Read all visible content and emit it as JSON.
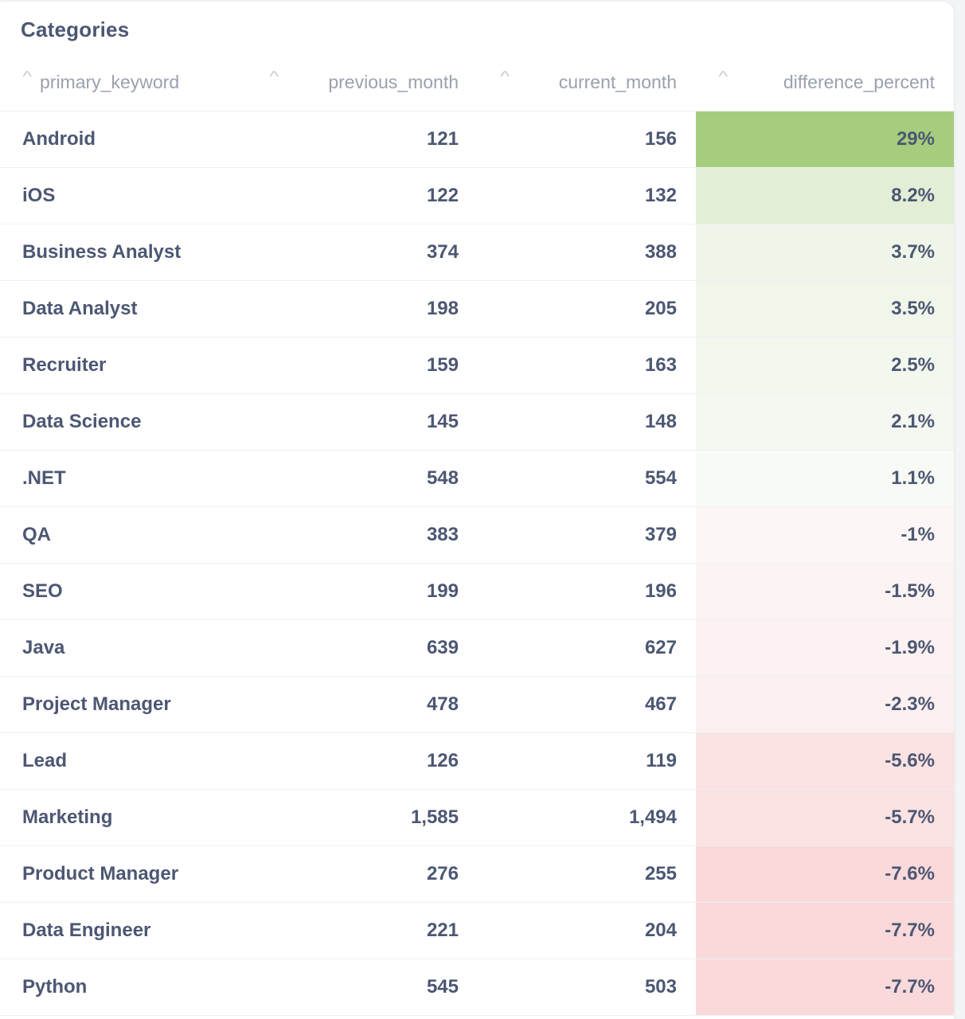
{
  "card": {
    "title": "Categories"
  },
  "table": {
    "columns": [
      "primary_keyword",
      "previous_month",
      "current_month",
      "difference_percent"
    ],
    "rows": [
      {
        "keyword": "Android",
        "previous": "121",
        "current": "156",
        "diff": "29%",
        "bg": "#a5cd7d"
      },
      {
        "keyword": "iOS",
        "previous": "122",
        "current": "132",
        "diff": "8.2%",
        "bg": "#e2efd6"
      },
      {
        "keyword": "Business Analyst",
        "previous": "374",
        "current": "388",
        "diff": "3.7%",
        "bg": "#eff6e9"
      },
      {
        "keyword": "Data Analyst",
        "previous": "198",
        "current": "205",
        "diff": "3.5%",
        "bg": "#f0f6ea"
      },
      {
        "keyword": "Recruiter",
        "previous": "159",
        "current": "163",
        "diff": "2.5%",
        "bg": "#f3f8ef"
      },
      {
        "keyword": "Data Science",
        "previous": "145",
        "current": "148",
        "diff": "2.1%",
        "bg": "#f4f8f0"
      },
      {
        "keyword": ".NET",
        "previous": "548",
        "current": "554",
        "diff": "1.1%",
        "bg": "#f8fbf5"
      },
      {
        "keyword": "QA",
        "previous": "383",
        "current": "379",
        "diff": "-1%",
        "bg": "#fdf6f6"
      },
      {
        "keyword": "SEO",
        "previous": "199",
        "current": "196",
        "diff": "-1.5%",
        "bg": "#fcf3f3"
      },
      {
        "keyword": "Java",
        "previous": "639",
        "current": "627",
        "diff": "-1.9%",
        "bg": "#fcf2f2"
      },
      {
        "keyword": "Project Manager",
        "previous": "478",
        "current": "467",
        "diff": "-2.3%",
        "bg": "#fcf0f0"
      },
      {
        "keyword": "Lead",
        "previous": "126",
        "current": "119",
        "diff": "-5.6%",
        "bg": "#fbe2e3"
      },
      {
        "keyword": "Marketing",
        "previous": "1,585",
        "current": "1,494",
        "diff": "-5.7%",
        "bg": "#fbe2e3"
      },
      {
        "keyword": "Product Manager",
        "previous": "276",
        "current": "255",
        "diff": "-7.6%",
        "bg": "#fad9db"
      },
      {
        "keyword": "Data Engineer",
        "previous": "221",
        "current": "204",
        "diff": "-7.7%",
        "bg": "#fad9da"
      },
      {
        "keyword": "Python",
        "previous": "545",
        "current": "503",
        "diff": "-7.7%",
        "bg": "#fad9da"
      }
    ]
  }
}
